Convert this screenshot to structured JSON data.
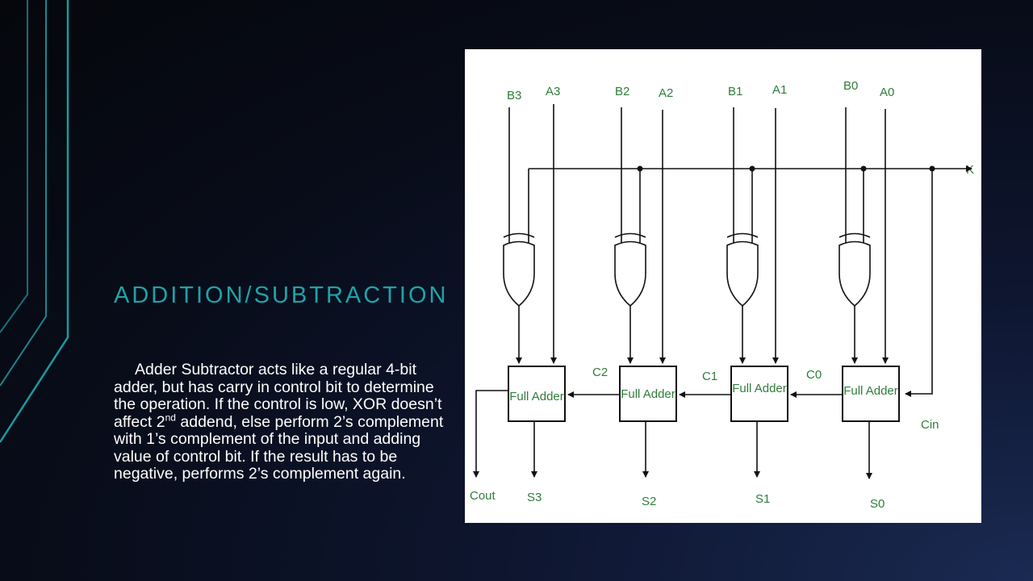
{
  "slide": {
    "title": "ADDITION/SUBTRACTION",
    "body_part1": "Adder Subtractor acts like a regular 4-bit adder, but has carry in control bit to determine the operation. If the control is low, XOR doesn’t affect 2",
    "body_sup": "nd",
    "body_part2": " addend, else perform 2’s complement with 1’s complement of the input and adding value of control bit. If the result has to be negative, performs 2’s complement again."
  },
  "diagram": {
    "inputs": [
      "B3",
      "A3",
      "B2",
      "A2",
      "B1",
      "A1",
      "B0",
      "A0"
    ],
    "control_label": "K",
    "block_label": "Full Adder",
    "carries": [
      "C2",
      "C1",
      "C0"
    ],
    "cin_label": "Cin",
    "cout_label": "Cout",
    "outputs": [
      "S3",
      "S2",
      "S1",
      "S0"
    ],
    "colors": {
      "label": "#2f7d3a",
      "title": "#1fa3a8",
      "decor": "#1a9aa0"
    }
  }
}
